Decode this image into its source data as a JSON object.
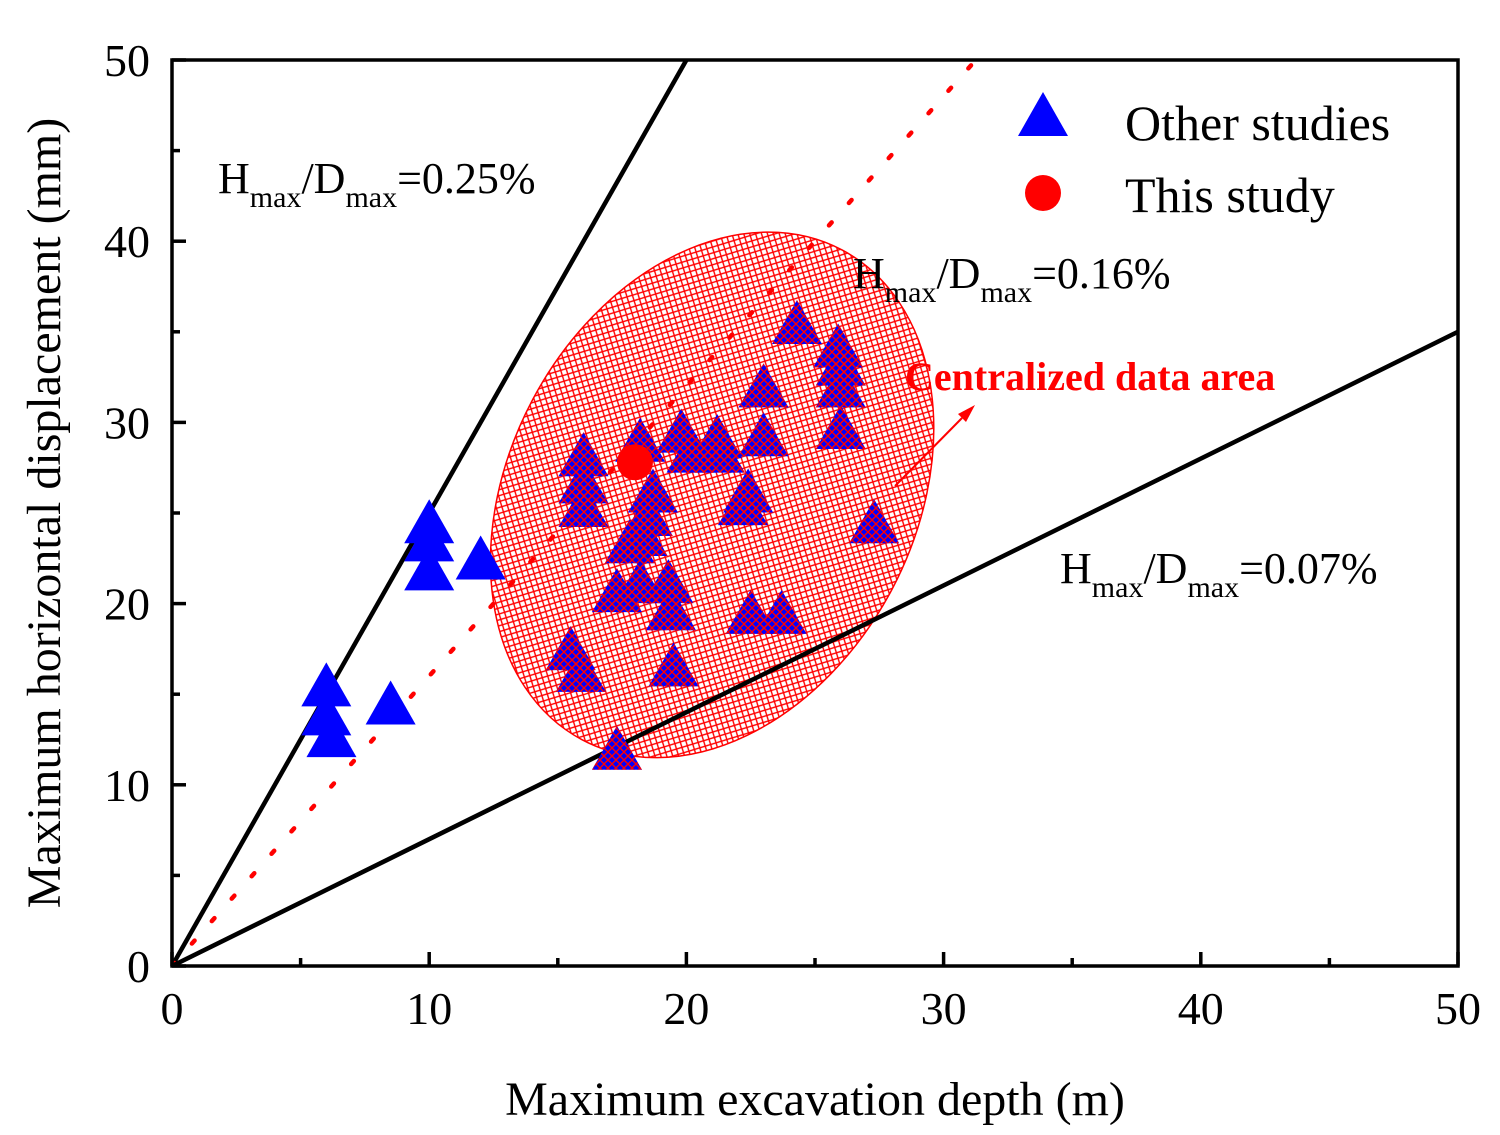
{
  "chart_data": {
    "type": "scatter",
    "xlabel": "Maximum excavation depth (m)",
    "ylabel": "Maximum horizontal displacement (mm)",
    "xlim": [
      0,
      50
    ],
    "ylim": [
      0,
      50
    ],
    "x_ticks": [
      "0",
      "10",
      "20",
      "30",
      "40",
      "50"
    ],
    "y_ticks": [
      "0",
      "10",
      "20",
      "30",
      "40",
      "50"
    ],
    "grid": false,
    "legend": {
      "placement": "top-right",
      "entries": [
        {
          "label": "Other studies",
          "marker": "triangle",
          "color": "#0000ff"
        },
        {
          "label": "This study",
          "marker": "circle",
          "color": "#ff0000"
        }
      ]
    },
    "series": [
      {
        "name": "Other studies",
        "marker": "triangle",
        "color": "#0000ff",
        "points": [
          [
            6.0,
            15.3
          ],
          [
            6.0,
            13.7
          ],
          [
            6.2,
            12.5
          ],
          [
            8.5,
            14.3
          ],
          [
            10.0,
            24.3
          ],
          [
            10.0,
            23.3
          ],
          [
            10.0,
            21.7
          ],
          [
            12.0,
            22.3
          ],
          [
            17.3,
            11.8
          ],
          [
            27.3,
            24.3
          ],
          [
            15.5,
            17.3
          ],
          [
            15.9,
            16.1
          ],
          [
            16.0,
            28.0
          ],
          [
            16.0,
            26.5
          ],
          [
            16.0,
            25.2
          ],
          [
            17.3,
            20.5
          ],
          [
            17.8,
            23.2
          ],
          [
            18.2,
            21.0
          ],
          [
            18.2,
            28.8
          ],
          [
            18.3,
            23.6
          ],
          [
            18.5,
            24.7
          ],
          [
            18.7,
            26.0
          ],
          [
            19.3,
            21.0
          ],
          [
            19.4,
            19.5
          ],
          [
            19.5,
            16.4
          ],
          [
            19.8,
            29.3
          ],
          [
            20.2,
            28.2
          ],
          [
            21.2,
            29.0
          ],
          [
            21.3,
            28.2
          ],
          [
            22.2,
            25.3
          ],
          [
            22.4,
            26.0
          ],
          [
            22.5,
            19.3
          ],
          [
            23.0,
            31.8
          ],
          [
            23.0,
            29.1
          ],
          [
            23.7,
            19.3
          ],
          [
            24.3,
            35.3
          ],
          [
            25.9,
            34.0
          ],
          [
            26.0,
            33.0
          ],
          [
            26.0,
            31.8
          ],
          [
            26.0,
            29.5
          ]
        ]
      },
      {
        "name": "This study",
        "marker": "circle",
        "color": "#ff0000",
        "points": [
          [
            18.0,
            27.8
          ]
        ]
      }
    ],
    "reference_lines": [
      {
        "label_main_1": "H",
        "label_sub_1": "max",
        "label_main_2": "/D",
        "label_sub_2": "max",
        "label_value": "=0.25%",
        "ratio": 0.25,
        "style": "solid",
        "color": "#000000"
      },
      {
        "label_main_1": "H",
        "label_sub_1": "max",
        "label_main_2": "/D",
        "label_sub_2": "max",
        "label_value": "=0.16%",
        "ratio": 0.16,
        "style": "dotted",
        "color": "#ff0000"
      },
      {
        "label_main_1": "H",
        "label_sub_1": "max",
        "label_main_2": "/D",
        "label_sub_2": "max",
        "label_value": "=0.07%",
        "ratio": 0.07,
        "style": "solid",
        "color": "#000000"
      }
    ],
    "region": {
      "label": "Centralized data area",
      "color": "#ff0000",
      "center": [
        21.0,
        26.0
      ],
      "semi_axes": [
        7.9,
        15.3
      ],
      "tilt_deg": -28
    }
  }
}
